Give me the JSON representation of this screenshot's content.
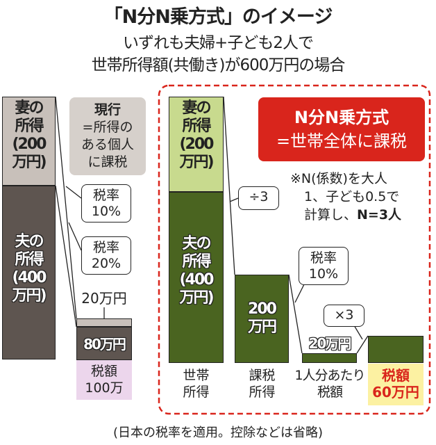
{
  "title": "「N分N乗方式」のイメージ",
  "subtitle1": "いずれも夫婦+子ども2人で",
  "subtitle2": "世帯所得額(共働き)が600万円の場合",
  "current": {
    "box_title": "現行",
    "box_lines": [
      "=所得の",
      "ある個人",
      "に課税"
    ],
    "wife": [
      "妻の",
      "所得",
      "(200",
      "万円)"
    ],
    "husband": [
      "夫の",
      "所得",
      "(400",
      "万円)"
    ],
    "rate1": [
      "税率",
      "10%"
    ],
    "rate2": [
      "税率",
      "20%"
    ],
    "tax_small": "20万円",
    "tax_large": "80万円",
    "total": [
      "税額",
      "100万"
    ]
  },
  "nbunn": {
    "box_lines": [
      "N分N乗方式",
      "=世帯全体に課税"
    ],
    "note": [
      "※N(係数)を大人",
      "1、子ども0.5で",
      "計算し、"
    ],
    "note_bold": "N=3人",
    "wife": [
      "妻の",
      "所得",
      "(200",
      "万円)"
    ],
    "husband": [
      "夫の",
      "所得",
      "(400",
      "万円)"
    ],
    "divide": "÷3",
    "taxable": [
      "200",
      "万円"
    ],
    "rate": [
      "税率",
      "10%"
    ],
    "per_person": "20万円",
    "multiply": "×3",
    "labels": [
      [
        "世帯",
        "所得"
      ],
      [
        "課税",
        "所得"
      ],
      [
        "1人分あたり",
        "税額"
      ]
    ],
    "total": [
      "税額",
      "60万円"
    ]
  },
  "footnote": "(日本の税率を適用。控除などは省略)",
  "colors": {
    "accent_red": "#d9251c",
    "dark_green": "#4a6420",
    "light_green": "#c8da8e",
    "dark_brown": "#5e5550",
    "light_gray": "#c8c0ba",
    "pink": "#ecd6ec",
    "yellow": "#fcf1a2"
  }
}
